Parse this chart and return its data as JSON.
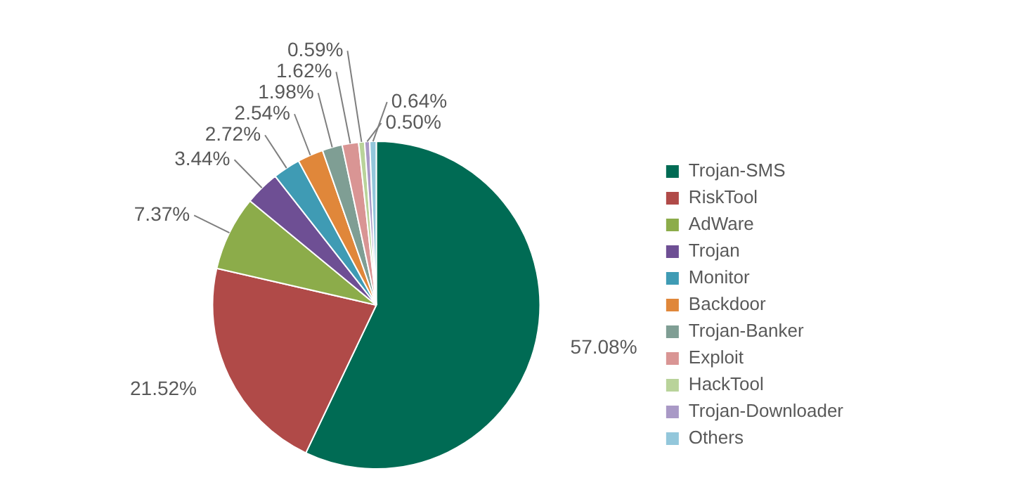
{
  "chart_data": {
    "type": "pie",
    "categories": [
      "Trojan-SMS",
      "RiskTool",
      "AdWare",
      "Trojan",
      "Monitor",
      "Backdoor",
      "Trojan-Banker",
      "Exploit",
      "HackTool",
      "Trojan-Downloader",
      "Others"
    ],
    "values": [
      57.08,
      21.52,
      7.37,
      3.44,
      2.72,
      2.54,
      1.98,
      1.62,
      0.59,
      0.5,
      0.64
    ],
    "value_labels": [
      "57.08%",
      "21.52%",
      "7.37%",
      "3.44%",
      "2.72%",
      "2.54%",
      "1.98%",
      "1.62%",
      "0.59%",
      "0.50%",
      "0.64%"
    ],
    "colors": [
      "#006b54",
      "#b04a48",
      "#8cac4a",
      "#6e4f94",
      "#3f9bb4",
      "#e0873a",
      "#7f9e94",
      "#d99594",
      "#b9d39a",
      "#a999c6",
      "#93c7db"
    ],
    "legend": "right"
  }
}
